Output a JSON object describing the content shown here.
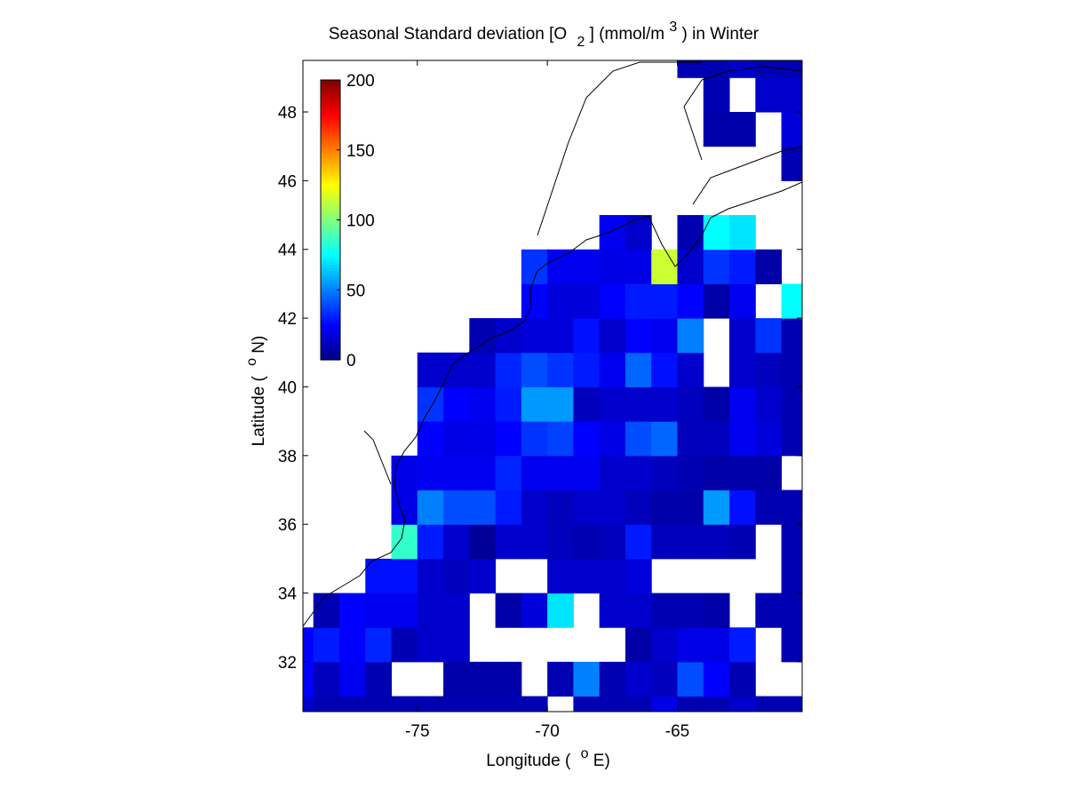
{
  "chart_data": {
    "type": "heatmap",
    "title": [
      "Seasonal Standard deviation [O",
      "2",
      "] (mmol/m",
      "3",
      ") in  Winter"
    ],
    "xlabel": [
      "Longitude (",
      "o",
      "E)"
    ],
    "ylabel": [
      "Latitude (",
      "o",
      "N)"
    ],
    "x": [
      -79.5,
      -78.5,
      -77.5,
      -76.5,
      -75.5,
      -74.5,
      -73.5,
      -72.5,
      -71.5,
      -70.5,
      -69.5,
      -68.5,
      -67.5,
      -66.5,
      -65.5,
      -64.5,
      -63.5,
      -62.5,
      -61.5,
      -60.5
    ],
    "y": [
      30.5,
      31.5,
      32.5,
      33.5,
      34.5,
      35.5,
      36.5,
      37.5,
      38.5,
      39.5,
      40.5,
      41.5,
      42.5,
      43.5,
      44.5,
      45.5,
      46.5,
      47.5,
      48.5,
      49.5
    ],
    "values": [
      [
        15,
        10,
        10,
        10,
        10,
        10,
        10,
        10,
        10,
        10,
        null,
        10,
        10,
        10,
        20,
        10,
        10,
        15,
        10,
        10
      ],
      [
        25,
        12,
        22,
        10,
        null,
        null,
        8,
        8,
        8,
        null,
        10,
        50,
        10,
        15,
        12,
        40,
        25,
        10,
        null,
        null
      ],
      [
        25,
        30,
        25,
        32,
        10,
        15,
        15,
        null,
        null,
        null,
        null,
        null,
        null,
        8,
        15,
        20,
        20,
        30,
        null,
        10
      ],
      [
        null,
        10,
        25,
        22,
        22,
        15,
        15,
        null,
        8,
        18,
        70,
        null,
        15,
        15,
        10,
        10,
        8,
        null,
        10,
        10
      ],
      [
        null,
        null,
        null,
        28,
        28,
        15,
        12,
        15,
        null,
        null,
        15,
        15,
        15,
        18,
        null,
        null,
        null,
        null,
        null,
        10
      ],
      [
        null,
        null,
        null,
        null,
        85,
        30,
        15,
        5,
        15,
        15,
        12,
        10,
        12,
        30,
        12,
        12,
        12,
        10,
        null,
        10
      ],
      [
        null,
        null,
        null,
        null,
        20,
        50,
        40,
        40,
        30,
        15,
        12,
        15,
        15,
        12,
        8,
        8,
        55,
        28,
        10,
        10
      ],
      [
        null,
        null,
        null,
        null,
        20,
        22,
        22,
        22,
        32,
        22,
        22,
        22,
        15,
        15,
        12,
        10,
        8,
        8,
        8,
        null
      ],
      [
        null,
        null,
        null,
        null,
        null,
        25,
        20,
        20,
        25,
        35,
        38,
        25,
        20,
        40,
        45,
        12,
        12,
        22,
        18,
        10
      ],
      [
        null,
        null,
        null,
        null,
        null,
        35,
        25,
        22,
        30,
        55,
        55,
        12,
        15,
        15,
        15,
        12,
        8,
        22,
        15,
        10
      ],
      [
        null,
        null,
        null,
        null,
        null,
        15,
        15,
        15,
        32,
        40,
        35,
        30,
        22,
        45,
        28,
        15,
        null,
        15,
        12,
        10
      ],
      [
        null,
        null,
        null,
        null,
        null,
        null,
        null,
        10,
        15,
        18,
        18,
        28,
        15,
        25,
        22,
        50,
        null,
        15,
        35,
        10
      ],
      [
        null,
        null,
        null,
        null,
        null,
        null,
        null,
        null,
        null,
        25,
        18,
        18,
        25,
        30,
        30,
        25,
        8,
        22,
        null,
        75
      ],
      [
        null,
        null,
        null,
        null,
        null,
        null,
        null,
        null,
        null,
        35,
        22,
        22,
        20,
        20,
        115,
        15,
        35,
        30,
        8,
        null
      ],
      [
        null,
        null,
        null,
        null,
        null,
        null,
        null,
        null,
        null,
        null,
        null,
        null,
        22,
        15,
        null,
        10,
        75,
        70,
        null,
        null
      ],
      [
        null,
        null,
        null,
        null,
        null,
        null,
        null,
        null,
        null,
        null,
        null,
        null,
        null,
        null,
        null,
        null,
        null,
        null,
        null,
        null
      ],
      [
        null,
        null,
        null,
        null,
        null,
        null,
        null,
        null,
        null,
        null,
        null,
        null,
        null,
        null,
        null,
        null,
        null,
        null,
        null,
        10
      ],
      [
        null,
        null,
        null,
        null,
        null,
        null,
        null,
        null,
        null,
        null,
        null,
        null,
        null,
        null,
        null,
        null,
        8,
        8,
        null,
        18
      ],
      [
        null,
        null,
        null,
        null,
        null,
        null,
        null,
        null,
        null,
        null,
        null,
        null,
        null,
        null,
        null,
        null,
        10,
        null,
        15,
        15
      ],
      [
        null,
        null,
        null,
        null,
        null,
        null,
        null,
        null,
        null,
        null,
        null,
        null,
        null,
        null,
        null,
        10,
        10,
        15,
        10,
        10
      ]
    ],
    "xlim": [
      -79.4,
      -60.2
    ],
    "ylim": [
      30.55,
      49.5
    ],
    "xticks": [
      -75,
      -70,
      -65
    ],
    "yticks": [
      32,
      34,
      36,
      38,
      40,
      42,
      44,
      46,
      48
    ],
    "colormap": "jet",
    "clim": [
      0,
      200
    ],
    "cticks": [
      0,
      50,
      100,
      150,
      200
    ]
  }
}
